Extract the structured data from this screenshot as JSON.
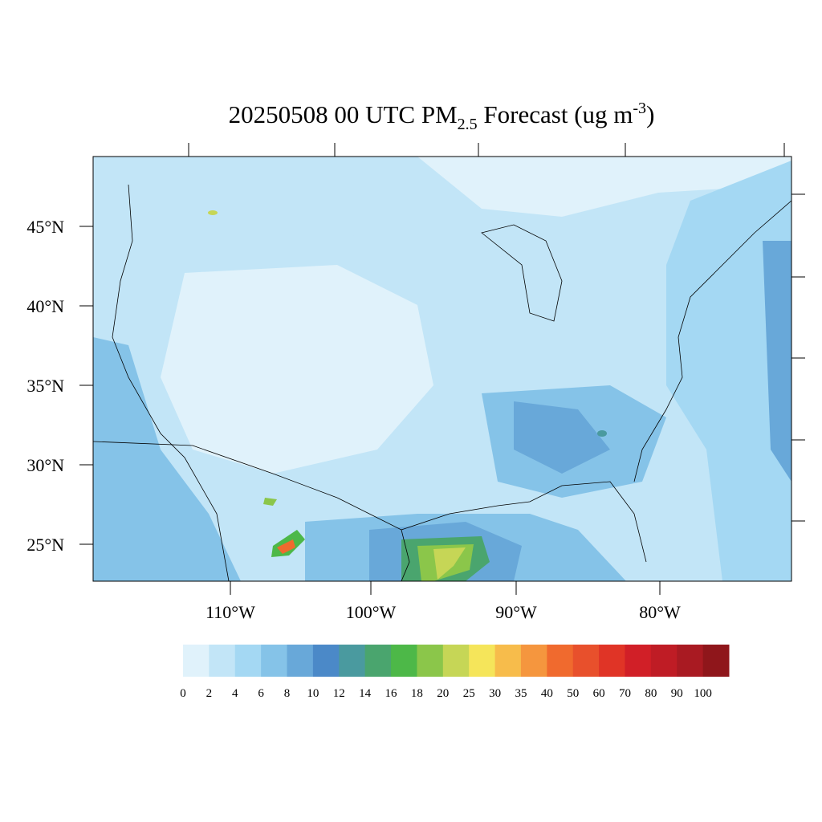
{
  "title": {
    "prefix": "20250508 00 UTC PM",
    "subscript": "2.5",
    "middle": " Forecast (ug m",
    "superscript": "-3",
    "suffix": ")"
  },
  "map": {
    "lat_labels": [
      "45°N",
      "40°N",
      "35°N",
      "30°N",
      "25°N"
    ],
    "lon_labels": [
      "110°W",
      "100°W",
      "90°W",
      "80°W"
    ]
  },
  "colorbar": {
    "levels": [
      0,
      2,
      4,
      6,
      8,
      10,
      12,
      14,
      16,
      18,
      20,
      25,
      30,
      35,
      40,
      50,
      60,
      70,
      80,
      90,
      100
    ],
    "colors": [
      "#e0f2fb",
      "#c2e5f7",
      "#a4d8f3",
      "#85c3e8",
      "#68a8d9",
      "#4b89c8",
      "#4a9a9f",
      "#4aa56e",
      "#4db848",
      "#8bc64a",
      "#c6d656",
      "#f5e55a",
      "#f7bc4b",
      "#f5963e",
      "#f06a2e",
      "#e8502c",
      "#e03426",
      "#d11f27",
      "#bf1c25",
      "#a91a22",
      "#8f161b"
    ]
  }
}
